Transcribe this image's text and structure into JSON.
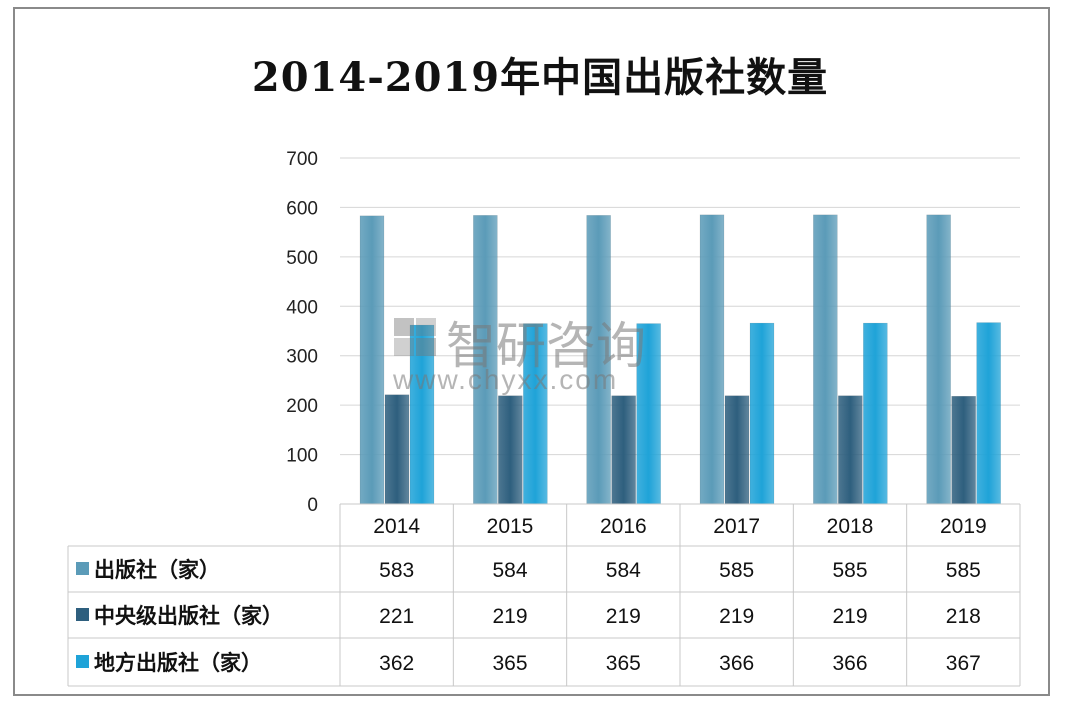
{
  "chart_data": {
    "type": "bar",
    "title": "2014-2019年中国出版社数量",
    "categories": [
      "2014",
      "2015",
      "2016",
      "2017",
      "2018",
      "2019"
    ],
    "series": [
      {
        "name": "出版社（家）",
        "values": [
          583,
          584,
          584,
          585,
          585,
          585
        ],
        "color": "#5b9bb8"
      },
      {
        "name": "中央级出版社（家）",
        "values": [
          221,
          219,
          219,
          219,
          219,
          218
        ],
        "color": "#2e5f7e"
      },
      {
        "name": "地方出版社（家）",
        "values": [
          362,
          365,
          365,
          366,
          366,
          367
        ],
        "color": "#1fa3d8"
      }
    ],
    "yticks": [
      "0",
      "100",
      "200",
      "300",
      "400",
      "500",
      "600",
      "700"
    ],
    "ylim": [
      0,
      700
    ],
    "grid": true,
    "legend": "data-table"
  },
  "watermark": {
    "brand": "智研咨询",
    "url": "www.chyxx.com"
  }
}
